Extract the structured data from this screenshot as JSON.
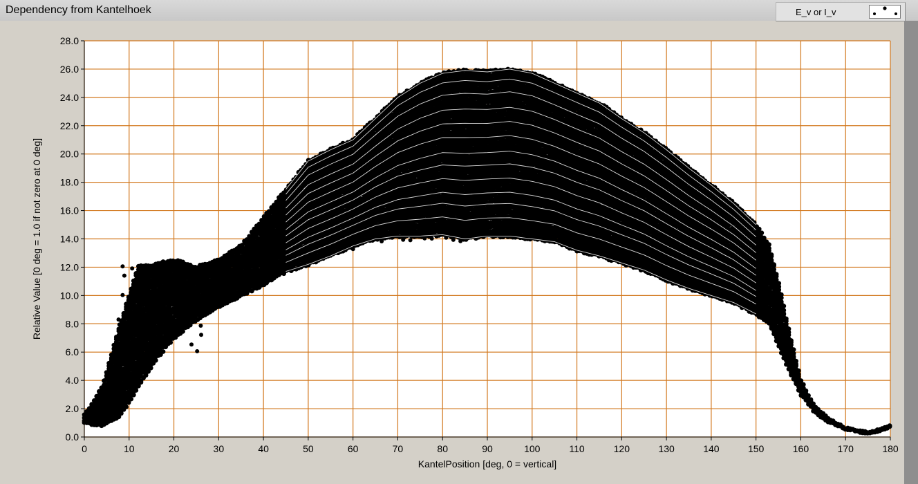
{
  "window": {
    "title": "Dependency from Kantelhoek"
  },
  "legend": {
    "label": "E_v or I_v",
    "marker_color": "#000000"
  },
  "chart_data": {
    "type": "scatter",
    "title": "Dependency from Kantelhoek",
    "xlabel": "KantelPosition [deg, 0 = vertical]",
    "ylabel": "Relative Value [0 deg = 1.0 if not zero at 0 deg]",
    "xlim": [
      0,
      180
    ],
    "ylim": [
      0,
      28
    ],
    "xticks": [
      0,
      10,
      20,
      30,
      40,
      50,
      60,
      70,
      80,
      90,
      100,
      110,
      120,
      130,
      140,
      150,
      160,
      170,
      180
    ],
    "yticks": [
      "0.0",
      "2.0",
      "4.0",
      "6.0",
      "8.0",
      "10.0",
      "12.0",
      "14.0",
      "16.0",
      "18.0",
      "20.0",
      "22.0",
      "24.0",
      "26.0",
      "28.0"
    ],
    "grid": true,
    "grid_color": "#d2781e",
    "plot_background": "#ffffff",
    "marker_color": "#000000",
    "series": [
      {
        "label": "E_v or I_v",
        "x": [
          0,
          4,
          8,
          12,
          16,
          20,
          25,
          30,
          35,
          40,
          45,
          50,
          55,
          60,
          65,
          70,
          75,
          80,
          85,
          90,
          95,
          100,
          105,
          110,
          115,
          120,
          125,
          130,
          135,
          140,
          145,
          150,
          153,
          155,
          157,
          160,
          163,
          166,
          170,
          173,
          175,
          178,
          180
        ],
        "y_low": [
          1.0,
          0.8,
          1.5,
          3.5,
          5.5,
          7.0,
          8.3,
          9.2,
          10.0,
          10.8,
          11.7,
          12.2,
          12.8,
          13.5,
          14.0,
          14.2,
          14.2,
          14.3,
          14.0,
          14.2,
          14.2,
          14.0,
          13.8,
          13.2,
          12.8,
          12.3,
          11.8,
          11.1,
          10.5,
          10.0,
          9.5,
          8.7,
          8.0,
          6.5,
          5.0,
          3.0,
          1.8,
          1.1,
          0.6,
          0.4,
          0.3,
          0.5,
          0.8
        ],
        "y_high": [
          1.5,
          3.5,
          8.0,
          12.0,
          12.2,
          12.5,
          12.0,
          12.5,
          13.5,
          15.5,
          17.5,
          19.5,
          20.3,
          21.0,
          22.5,
          24.0,
          25.0,
          25.7,
          25.9,
          25.8,
          26.0,
          25.7,
          25.0,
          24.3,
          23.6,
          22.5,
          21.5,
          20.3,
          19.0,
          17.8,
          16.5,
          15.0,
          13.5,
          11.0,
          8.0,
          4.0,
          2.2,
          1.3,
          0.6,
          0.4,
          0.3,
          0.5,
          0.8
        ],
        "bands": [
          14.2,
          15.5,
          16.5,
          17.3,
          18.3,
          19.3,
          20.2,
          21.3,
          22.3,
          23.3,
          24.4,
          25.3,
          26.0
        ]
      }
    ]
  }
}
